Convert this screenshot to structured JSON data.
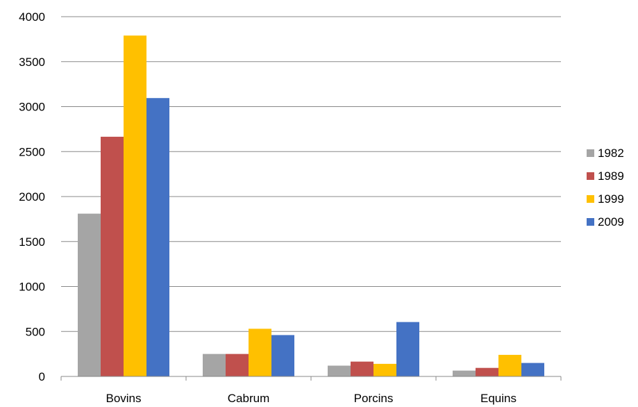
{
  "chart_data": {
    "type": "bar",
    "title": "",
    "xlabel": "",
    "ylabel": "",
    "categories": [
      "Bovins",
      "Cabrum",
      "Porcins",
      "Equins"
    ],
    "series": [
      {
        "name": "1982",
        "color": "#A5A5A5",
        "values": [
          1810,
          250,
          120,
          65
        ]
      },
      {
        "name": "1989",
        "color": "#C0504D",
        "values": [
          2665,
          250,
          165,
          95
        ]
      },
      {
        "name": "1999",
        "color": "#FFC000",
        "values": [
          3790,
          530,
          140,
          240
        ]
      },
      {
        "name": "2009",
        "color": "#4472C4",
        "values": [
          3095,
          460,
          605,
          150
        ]
      }
    ],
    "ylim": [
      0,
      4000
    ],
    "yticks": [
      0,
      500,
      1000,
      1500,
      2000,
      2500,
      3000,
      3500,
      4000
    ],
    "grid": true,
    "legend_position": "right"
  }
}
